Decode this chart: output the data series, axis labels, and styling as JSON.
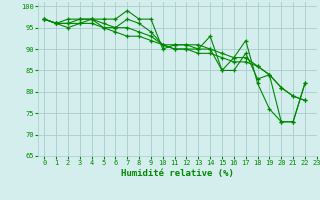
{
  "lines": [
    {
      "x": [
        0,
        1,
        2,
        3,
        4,
        5,
        6,
        7,
        8,
        9,
        10,
        11,
        12,
        13,
        14,
        15,
        16,
        17,
        18,
        19,
        20,
        21,
        22
      ],
      "y": [
        97,
        96,
        97,
        97,
        97,
        97,
        97,
        99,
        97,
        97,
        90,
        91,
        91,
        91,
        90,
        85,
        88,
        92,
        82,
        76,
        73,
        73,
        82
      ]
    },
    {
      "x": [
        0,
        1,
        2,
        3,
        4,
        5,
        6,
        7,
        8,
        9,
        10,
        11,
        12,
        13,
        14,
        15,
        16,
        17,
        18,
        19,
        20,
        21,
        22
      ],
      "y": [
        97,
        96,
        96,
        97,
        97,
        96,
        95,
        97,
        96,
        94,
        91,
        91,
        91,
        90,
        93,
        85,
        85,
        89,
        83,
        84,
        73,
        73,
        82
      ]
    },
    {
      "x": [
        0,
        1,
        2,
        3,
        4,
        5,
        6,
        7,
        8,
        9,
        10,
        11,
        12,
        13,
        14,
        15,
        16,
        17,
        18,
        19,
        20,
        21,
        22
      ],
      "y": [
        97,
        96,
        96,
        96,
        96,
        95,
        95,
        95,
        94,
        93,
        91,
        90,
        90,
        90,
        90,
        89,
        88,
        88,
        86,
        84,
        81,
        79,
        78
      ]
    },
    {
      "x": [
        0,
        1,
        2,
        3,
        4,
        5,
        6,
        7,
        8,
        9,
        10,
        11,
        12,
        13,
        14,
        15,
        16,
        17,
        18,
        19,
        20,
        21,
        22
      ],
      "y": [
        97,
        96,
        95,
        96,
        97,
        95,
        94,
        93,
        93,
        92,
        91,
        90,
        90,
        89,
        89,
        88,
        87,
        87,
        86,
        84,
        81,
        79,
        78
      ]
    }
  ],
  "line_color": "#008800",
  "marker": "+",
  "bg_color": "#d4eeee",
  "grid_color": "#a8cccc",
  "xlabel": "Humidité relative (%)",
  "xlabel_color": "#008800",
  "tick_color": "#008800",
  "xlim": [
    -0.5,
    23
  ],
  "ylim": [
    65,
    101
  ],
  "yticks": [
    65,
    70,
    75,
    80,
    85,
    90,
    95,
    100
  ],
  "xticks": [
    0,
    1,
    2,
    3,
    4,
    5,
    6,
    7,
    8,
    9,
    10,
    11,
    12,
    13,
    14,
    15,
    16,
    17,
    18,
    19,
    20,
    21,
    22,
    23
  ]
}
